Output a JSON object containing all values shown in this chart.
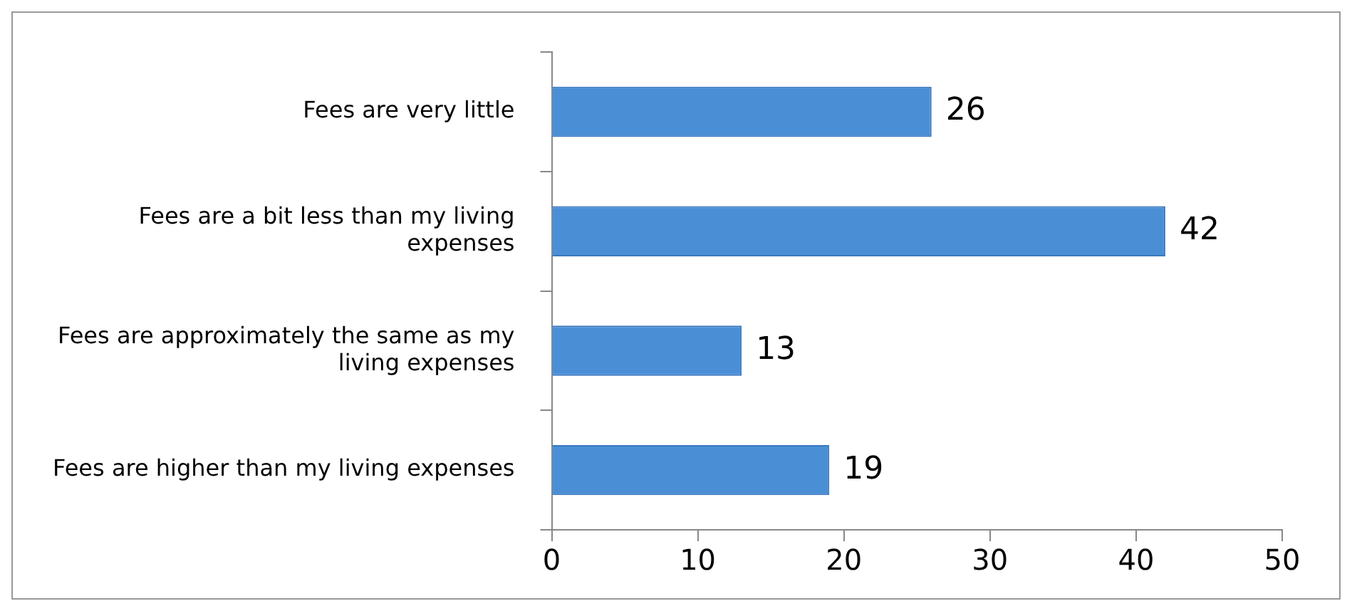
{
  "chart_data": {
    "type": "bar",
    "orientation": "horizontal",
    "categories": [
      "Fees are very little",
      "Fees are a bit less than my living expenses",
      "Fees are approximately the same as my living expenses",
      "Fees are higher than my living expenses"
    ],
    "values": [
      26,
      42,
      13,
      19
    ],
    "color": "#4a8fd6",
    "xlim": [
      0,
      50
    ],
    "xticks": [
      0,
      10,
      20,
      30,
      40,
      50
    ],
    "grid": false,
    "legend": false,
    "data_labels": true
  }
}
